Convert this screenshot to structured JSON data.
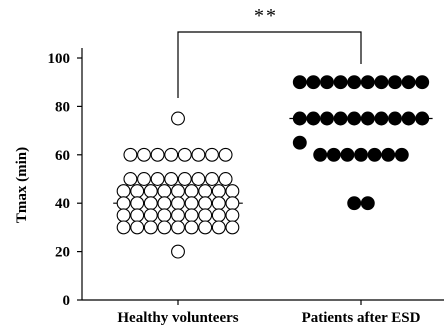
{
  "chart_data": {
    "type": "scatter",
    "ylabel": "Tmax (min)",
    "ylim": [
      0,
      100
    ],
    "yticks": [
      0,
      20,
      40,
      60,
      80,
      100
    ],
    "categories": [
      "Healthy volunteers",
      "Patients after ESD"
    ],
    "significance": "**",
    "series": [
      {
        "category": "Healthy volunteers",
        "marker": "open-circle",
        "mean_line": 40,
        "points": [
          {
            "y": 75,
            "count": 1
          },
          {
            "y": 60,
            "count": 8
          },
          {
            "y": 50,
            "count": 8
          },
          {
            "y": 45,
            "count": 9
          },
          {
            "y": 40,
            "count": 9
          },
          {
            "y": 35,
            "count": 9
          },
          {
            "y": 30,
            "count": 9
          },
          {
            "y": 20,
            "count": 1
          }
        ]
      },
      {
        "category": "Patients after ESD",
        "marker": "filled-circle",
        "mean_line": 75,
        "points": [
          {
            "y": 90,
            "count": 10
          },
          {
            "y": 75,
            "count": 10
          },
          {
            "y": 65,
            "count": 1
          },
          {
            "y": 60,
            "count": 7
          },
          {
            "y": 40,
            "count": 2
          }
        ]
      }
    ]
  }
}
